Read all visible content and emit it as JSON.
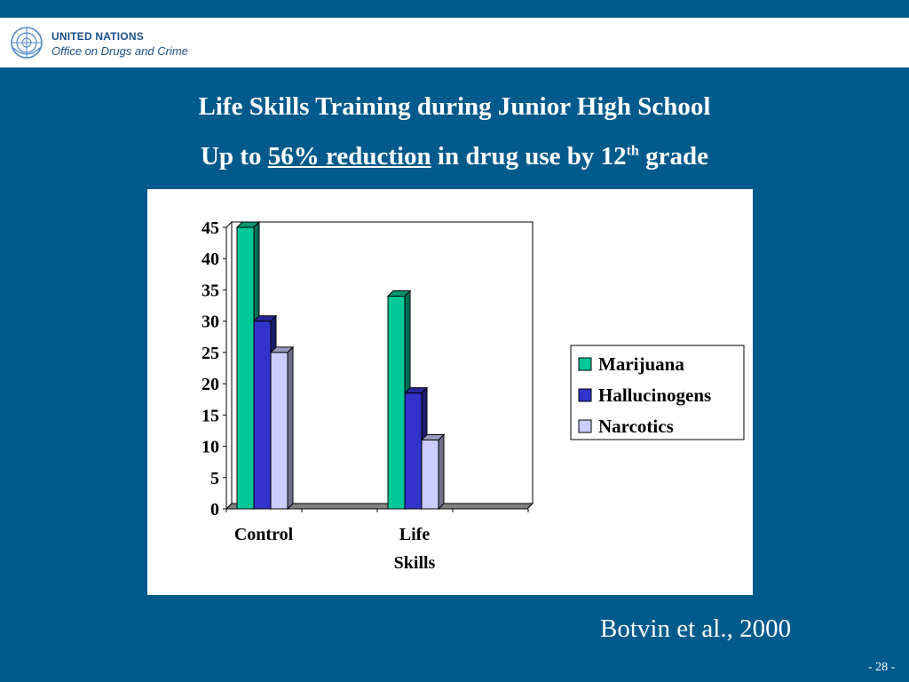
{
  "header": {
    "org_line1": "UNITED NATIONS",
    "org_line2": "Office on Drugs and Crime",
    "emblem_icon": "un-emblem-icon"
  },
  "title": {
    "line1": "Life Skills Training during Junior High School",
    "line2_prefix": "Up to ",
    "line2_emphasis": "56% reduction",
    "line2_middle": " in drug use by 12",
    "line2_superscript": "th",
    "line2_suffix": " grade"
  },
  "citation": "Botvin et al., 2000",
  "page_number": "- 28 -",
  "colors": {
    "background": "#005a8c",
    "marijuana": "#00c896",
    "hallucinogens": "#3333cc",
    "narcotics": "#ccccff"
  },
  "chart_data": {
    "type": "bar",
    "style": "3d-clustered-column",
    "categories": [
      "Control",
      "Life Skills"
    ],
    "category_lines": [
      [
        "Control"
      ],
      [
        "Life",
        "Skills"
      ]
    ],
    "series": [
      {
        "name": "Marijuana",
        "values": [
          45,
          34
        ],
        "color": "#00c896"
      },
      {
        "name": "Hallucinogens",
        "values": [
          30,
          18.5
        ],
        "color": "#3333cc"
      },
      {
        "name": "Narcotics",
        "values": [
          25,
          11
        ],
        "color": "#ccccff"
      }
    ],
    "yticks": [
      0,
      5,
      10,
      15,
      20,
      25,
      30,
      35,
      40,
      45
    ],
    "ylim": [
      0,
      45
    ],
    "grid": false,
    "legend_position": "right"
  }
}
